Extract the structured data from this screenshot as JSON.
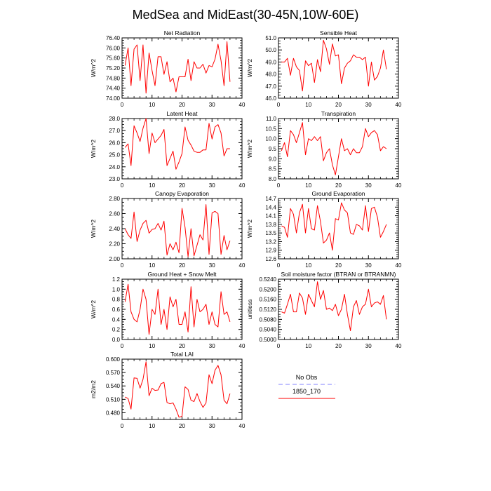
{
  "figure_title": "MedSea and MidEast(30-45N,10W-60E)",
  "legend": {
    "entries": [
      {
        "label": "No Obs",
        "color": "#8080ff",
        "dashed": true
      },
      {
        "label": "1850_170",
        "color": "#ff0000",
        "dashed": false
      }
    ]
  },
  "chart_data": [
    {
      "type": "line",
      "title": "Net Radiation",
      "xlabel": "",
      "ylabel": "W/m^2",
      "xlim": [
        0,
        40
      ],
      "ylim": [
        74.0,
        76.4
      ],
      "yticks": [
        "74.00",
        "74.40",
        "74.80",
        "75.20",
        "75.60",
        "76.00",
        "76.40"
      ],
      "xticks": [
        "0",
        "10",
        "20",
        "30",
        "40"
      ],
      "series": [
        {
          "color": "#ff0000",
          "x": [
            1,
            2,
            3,
            4,
            5,
            6,
            7,
            8,
            9,
            10,
            11,
            12,
            13,
            14,
            15,
            16,
            17,
            18,
            19,
            20,
            21,
            22,
            23,
            24,
            25,
            26,
            27,
            28,
            29,
            30,
            31,
            32,
            33,
            34,
            35,
            36
          ],
          "values": [
            75.3,
            76.0,
            74.5,
            75.95,
            76.12,
            74.7,
            76.12,
            74.2,
            75.8,
            75.1,
            74.5,
            75.65,
            75.65,
            74.95,
            75.45,
            74.65,
            74.8,
            74.25,
            74.85,
            74.85,
            74.85,
            75.55,
            74.7,
            75.45,
            75.2,
            75.2,
            75.35,
            75.0,
            75.3,
            75.25,
            75.55,
            76.15,
            75.5,
            74.5,
            76.25,
            74.65
          ]
        }
      ]
    },
    {
      "type": "line",
      "title": "Sensible Heat",
      "xlabel": "",
      "ylabel": "W/m^2",
      "xlim": [
        0,
        40
      ],
      "ylim": [
        46.0,
        51.0
      ],
      "yticks": [
        "46.0",
        "47.0",
        "48.0",
        "49.0",
        "50.0",
        "51.0"
      ],
      "xticks": [
        "0",
        "10",
        "20",
        "30",
        "40"
      ],
      "series": [
        {
          "color": "#ff0000",
          "x": [
            1,
            2,
            3,
            4,
            5,
            6,
            7,
            8,
            9,
            10,
            11,
            12,
            13,
            14,
            15,
            16,
            17,
            18,
            19,
            20,
            21,
            22,
            23,
            24,
            25,
            26,
            27,
            28,
            29,
            30,
            31,
            32,
            33,
            34,
            35,
            36
          ],
          "values": [
            49.0,
            49.0,
            49.3,
            47.9,
            49.3,
            48.6,
            48.3,
            46.6,
            49.1,
            48.7,
            48.9,
            47.3,
            49.2,
            48.2,
            50.8,
            50.1,
            48.8,
            50.5,
            49.5,
            49.6,
            47.2,
            48.5,
            48.9,
            49.1,
            49.6,
            49.4,
            49.4,
            49.2,
            49.4,
            47.0,
            49.0,
            47.5,
            47.8,
            48.5,
            50.0,
            48.4
          ]
        }
      ]
    },
    {
      "type": "line",
      "title": "Latent Heat",
      "xlabel": "",
      "ylabel": "W/m^2",
      "xlim": [
        0,
        40
      ],
      "ylim": [
        23.0,
        28.0
      ],
      "yticks": [
        "23.0",
        "24.0",
        "25.0",
        "26.0",
        "27.0",
        "28.0"
      ],
      "xticks": [
        "0",
        "10",
        "20",
        "30",
        "40"
      ],
      "series": [
        {
          "color": "#ff0000",
          "x": [
            1,
            2,
            3,
            4,
            5,
            6,
            7,
            8,
            9,
            10,
            11,
            12,
            13,
            14,
            15,
            16,
            17,
            18,
            19,
            20,
            21,
            22,
            23,
            24,
            25,
            26,
            27,
            28,
            29,
            30,
            31,
            32,
            33,
            34,
            35,
            36
          ],
          "values": [
            25.6,
            25.9,
            24.1,
            27.4,
            26.8,
            26.1,
            27.2,
            28.0,
            25.1,
            26.8,
            26.0,
            26.3,
            26.6,
            27.1,
            24.1,
            24.7,
            25.3,
            23.8,
            24.4,
            25.1,
            27.3,
            26.2,
            25.8,
            25.3,
            25.2,
            25.2,
            25.4,
            25.4,
            27.6,
            26.3,
            27.3,
            27.5,
            26.8,
            24.9,
            25.5,
            25.5
          ]
        }
      ]
    },
    {
      "type": "line",
      "title": "Transpiration",
      "xlabel": "",
      "ylabel": "W/m^2",
      "xlim": [
        0,
        40
      ],
      "ylim": [
        8.0,
        11.0
      ],
      "yticks": [
        "8.0",
        "8.5",
        "9.0",
        "9.5",
        "10.0",
        "10.5",
        "11.0"
      ],
      "xticks": [
        "0",
        "10",
        "20",
        "30",
        "40"
      ],
      "series": [
        {
          "color": "#ff0000",
          "x": [
            1,
            2,
            3,
            4,
            5,
            6,
            7,
            8,
            9,
            10,
            11,
            12,
            13,
            14,
            15,
            16,
            17,
            18,
            19,
            20,
            21,
            22,
            23,
            24,
            25,
            26,
            27,
            28,
            29,
            30,
            31,
            32,
            33,
            34,
            35,
            36
          ],
          "values": [
            9.4,
            9.8,
            9.1,
            10.4,
            10.2,
            9.8,
            10.3,
            10.8,
            9.2,
            10.0,
            9.9,
            10.1,
            9.9,
            10.1,
            8.9,
            9.3,
            9.5,
            8.7,
            8.2,
            9.1,
            10.0,
            9.4,
            9.5,
            9.2,
            9.5,
            9.3,
            9.3,
            9.6,
            10.5,
            10.1,
            10.3,
            10.4,
            10.2,
            9.4,
            9.6,
            9.5
          ]
        }
      ]
    },
    {
      "type": "line",
      "title": "Canopy Evaporation",
      "xlabel": "",
      "ylabel": "W/m^2",
      "xlim": [
        0,
        40
      ],
      "ylim": [
        2.0,
        2.8
      ],
      "yticks": [
        "2.00",
        "2.20",
        "2.40",
        "2.60",
        "2.80"
      ],
      "xticks": [
        "0",
        "10",
        "20",
        "30",
        "40"
      ],
      "series": [
        {
          "color": "#ff0000",
          "x": [
            1,
            2,
            3,
            4,
            5,
            6,
            7,
            8,
            9,
            10,
            11,
            12,
            13,
            14,
            15,
            16,
            17,
            18,
            19,
            20,
            21,
            22,
            23,
            24,
            25,
            26,
            27,
            28,
            29,
            30,
            31,
            32,
            33,
            34,
            35,
            36
          ],
          "values": [
            2.4,
            2.32,
            2.27,
            2.62,
            2.23,
            2.38,
            2.47,
            2.51,
            2.34,
            2.39,
            2.4,
            2.47,
            2.38,
            2.5,
            2.05,
            2.2,
            2.12,
            2.22,
            2.08,
            2.67,
            2.42,
            2.03,
            2.4,
            2.04,
            2.18,
            2.32,
            2.25,
            2.72,
            2.06,
            2.61,
            2.63,
            2.6,
            2.06,
            2.31,
            2.12,
            2.24
          ]
        }
      ]
    },
    {
      "type": "line",
      "title": "Ground Evaporation",
      "xlabel": "",
      "ylabel": "W/m^2",
      "xlim": [
        0,
        40
      ],
      "ylim": [
        12.6,
        14.7
      ],
      "yticks": [
        "12.6",
        "12.9",
        "13.2",
        "13.5",
        "13.8",
        "14.1",
        "14.4",
        "14.7"
      ],
      "xticks": [
        "0",
        "10",
        "20",
        "30",
        "40"
      ],
      "series": [
        {
          "color": "#ff0000",
          "x": [
            1,
            2,
            3,
            4,
            5,
            6,
            7,
            8,
            9,
            10,
            11,
            12,
            13,
            14,
            15,
            16,
            17,
            18,
            19,
            20,
            21,
            22,
            23,
            24,
            25,
            26,
            27,
            28,
            29,
            30,
            31,
            32,
            33,
            34,
            35,
            36
          ],
          "values": [
            13.75,
            13.7,
            13.35,
            14.35,
            14.15,
            13.5,
            14.2,
            14.5,
            13.5,
            14.35,
            13.65,
            13.6,
            14.45,
            13.9,
            13.15,
            13.25,
            13.5,
            12.9,
            14.0,
            13.95,
            14.55,
            14.3,
            14.2,
            13.5,
            13.45,
            13.8,
            13.75,
            13.6,
            14.45,
            13.55,
            14.35,
            14.4,
            14.05,
            13.35,
            13.55,
            13.8
          ]
        }
      ]
    },
    {
      "type": "line",
      "title": "Ground Heat + Snow Melt",
      "xlabel": "",
      "ylabel": "W/m^2",
      "xlim": [
        0,
        40
      ],
      "ylim": [
        0.0,
        1.2
      ],
      "yticks": [
        "0.0",
        "0.2",
        "0.4",
        "0.6",
        "0.8",
        "1.0",
        "1.2"
      ],
      "xticks": [
        "0",
        "10",
        "20",
        "30",
        "40"
      ],
      "series": [
        {
          "color": "#ff0000",
          "x": [
            1,
            2,
            3,
            4,
            5,
            6,
            7,
            8,
            9,
            10,
            11,
            12,
            13,
            14,
            15,
            16,
            17,
            18,
            19,
            20,
            21,
            22,
            23,
            24,
            25,
            26,
            27,
            28,
            29,
            30,
            31,
            32,
            33,
            34,
            35,
            36
          ],
          "values": [
            0.75,
            1.1,
            0.55,
            0.4,
            0.35,
            0.6,
            1.0,
            0.8,
            0.1,
            0.6,
            0.5,
            1.0,
            0.3,
            0.6,
            0.2,
            0.85,
            0.65,
            0.8,
            0.3,
            0.3,
            0.55,
            0.15,
            1.05,
            0.25,
            0.8,
            0.55,
            0.6,
            0.7,
            0.3,
            0.55,
            0.3,
            0.25,
            0.95,
            0.5,
            0.55,
            0.35
          ]
        }
      ]
    },
    {
      "type": "line",
      "title": "Soil moisture factor (BTRAN or BTRANMN)",
      "xlabel": "",
      "ylabel": "unitless",
      "xlim": [
        0,
        40
      ],
      "ylim": [
        0.5,
        0.524
      ],
      "yticks": [
        "0.5000",
        "0.5040",
        "0.5080",
        "0.5120",
        "0.5160",
        "0.5200",
        "0.5240"
      ],
      "xticks": [
        "0",
        "10",
        "20",
        "30",
        "40"
      ],
      "series": [
        {
          "color": "#ff0000",
          "x": [
            1,
            2,
            3,
            4,
            5,
            6,
            7,
            8,
            9,
            10,
            11,
            12,
            13,
            14,
            15,
            16,
            17,
            18,
            19,
            20,
            21,
            22,
            23,
            24,
            25,
            26,
            27,
            28,
            29,
            30,
            31,
            32,
            33,
            34,
            35,
            36
          ],
          "values": [
            0.511,
            0.5105,
            0.514,
            0.518,
            0.511,
            0.511,
            0.5185,
            0.5165,
            0.51,
            0.518,
            0.5155,
            0.513,
            0.523,
            0.516,
            0.5195,
            0.512,
            0.5125,
            0.5115,
            0.514,
            0.5095,
            0.512,
            0.518,
            0.51,
            0.5035,
            0.513,
            0.5155,
            0.51,
            0.513,
            0.514,
            0.52,
            0.513,
            0.5145,
            0.515,
            0.514,
            0.5175,
            0.508
          ]
        }
      ]
    },
    {
      "type": "line",
      "title": "Total LAI",
      "xlabel": "",
      "ylabel": "m2/m2",
      "xlim": [
        0,
        40
      ],
      "ylim": [
        0.465,
        0.6
      ],
      "yticks": [
        "0.480",
        "0.510",
        "0.540",
        "0.570",
        "0.600"
      ],
      "xticks": [
        "0",
        "10",
        "20",
        "30",
        "40"
      ],
      "series": [
        {
          "color": "#ff0000",
          "x": [
            1,
            2,
            3,
            4,
            5,
            6,
            7,
            8,
            9,
            10,
            11,
            12,
            13,
            14,
            15,
            16,
            17,
            18,
            19,
            20,
            21,
            22,
            23,
            24,
            25,
            26,
            27,
            28,
            29,
            30,
            31,
            32,
            33,
            34,
            35,
            36
          ],
          "values": [
            0.515,
            0.512,
            0.488,
            0.558,
            0.557,
            0.535,
            0.555,
            0.594,
            0.518,
            0.535,
            0.53,
            0.531,
            0.545,
            0.548,
            0.503,
            0.5,
            0.502,
            0.488,
            0.47,
            0.472,
            0.538,
            0.532,
            0.508,
            0.505,
            0.523,
            0.505,
            0.492,
            0.502,
            0.565,
            0.545,
            0.575,
            0.586,
            0.565,
            0.508,
            0.5,
            0.523
          ]
        }
      ]
    }
  ]
}
